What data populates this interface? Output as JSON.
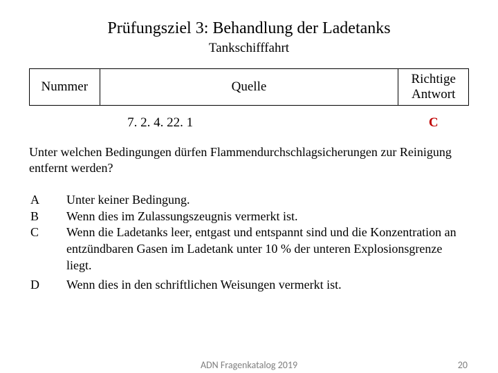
{
  "title": "Prüfungsziel 3: Behandlung der Ladetanks",
  "subtitle": "Tankschifffahrt",
  "table": {
    "headers": {
      "nummer": "Nummer",
      "quelle": "Quelle",
      "antwort": "Richtige Antwort"
    },
    "row": {
      "nummer": "",
      "quelle": "7. 2. 4. 22. 1",
      "antwort": "C"
    }
  },
  "question": "Unter welchen Bedingungen dürfen Flammendurchschlagsicherungen zur Reinigung entfernt werden?",
  "options": {
    "A": "Unter keiner Bedingung.",
    "B": "Wenn dies im Zulassungszeugnis vermerkt ist.",
    "C": "Wenn die Ladetanks leer, entgast und entspannt sind und die Konzentration an entzündbaren Gasen im Ladetank unter 10 % der unteren Explosionsgrenze liegt.",
    "D": "Wenn dies in den schriftlichen Weisungen vermerkt ist."
  },
  "footer": {
    "center": "ADN Fragenkatalog 2019",
    "page": "20"
  },
  "colors": {
    "answer": "#c00000",
    "footer": "#7f7f7f",
    "text": "#000000",
    "background": "#ffffff"
  }
}
